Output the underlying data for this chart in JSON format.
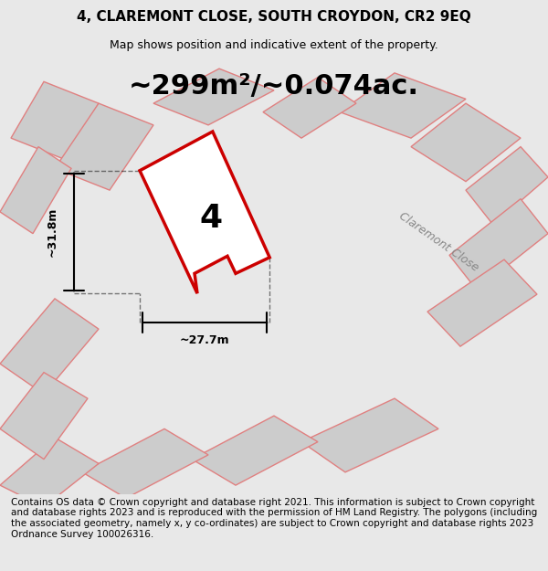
{
  "title_line1": "4, CLAREMONT CLOSE, SOUTH CROYDON, CR2 9EQ",
  "title_line2": "Map shows position and indicative extent of the property.",
  "area_text": "~299m²/~0.074ac.",
  "width_label": "~27.7m",
  "height_label": "~31.8m",
  "number_label": "4",
  "footer_text": "Contains OS data © Crown copyright and database right 2021. This information is subject to Crown copyright and database rights 2023 and is reproduced with the permission of HM Land Registry. The polygons (including the associated geometry, namely x, y co-ordinates) are subject to Crown copyright and database rights 2023 Ordnance Survey 100026316.",
  "bg_color": "#e8e8e8",
  "map_bg": "#d8d8d8",
  "main_poly_color": "#cc0000",
  "neighbor_color": "#e8a0a0",
  "road_label": "Claremont Close",
  "title_fontsize": 11,
  "subtitle_fontsize": 9,
  "area_fontsize": 22,
  "footer_fontsize": 7.5
}
